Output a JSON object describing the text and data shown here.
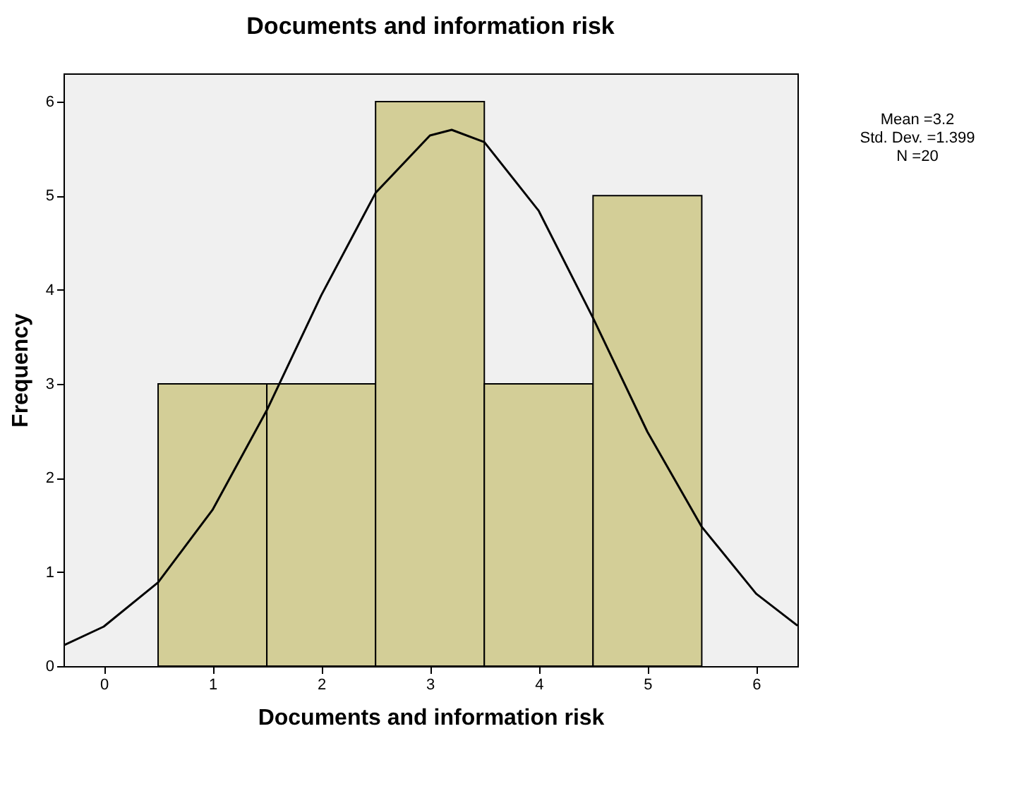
{
  "chart_data": {
    "type": "histogram",
    "title": "Documents and information risk",
    "xlabel": "Documents and information risk",
    "ylabel": "Frequency",
    "bins": [
      0.5,
      1.5,
      2.5,
      3.5,
      4.5,
      5.5
    ],
    "values": [
      3,
      3,
      6,
      3,
      5
    ],
    "color": "#d3ce97",
    "series": [
      {
        "type": "line",
        "color": "#000000",
        "x": [
          -0.37,
          0,
          0.5,
          1,
          1.5,
          2,
          2.5,
          3,
          3.2,
          3.5,
          4,
          4.5,
          5,
          5.5,
          6,
          6.38
        ],
        "values": [
          0.22,
          0.42,
          0.89,
          1.66,
          2.72,
          3.94,
          5.03,
          5.64,
          5.7,
          5.57,
          4.84,
          3.7,
          2.49,
          1.48,
          0.77,
          0.43
        ]
      }
    ],
    "xlim": [
      -0.37,
      6.38
    ],
    "xticks": [
      0,
      1,
      2,
      3,
      4,
      5,
      6
    ],
    "ylim": [
      0,
      6.3
    ],
    "yticks": [
      0,
      1,
      2,
      3,
      4,
      5,
      6
    ],
    "annotations": [
      "Mean =3.2",
      "Std. Dev. =1.399",
      "N =20"
    ]
  }
}
